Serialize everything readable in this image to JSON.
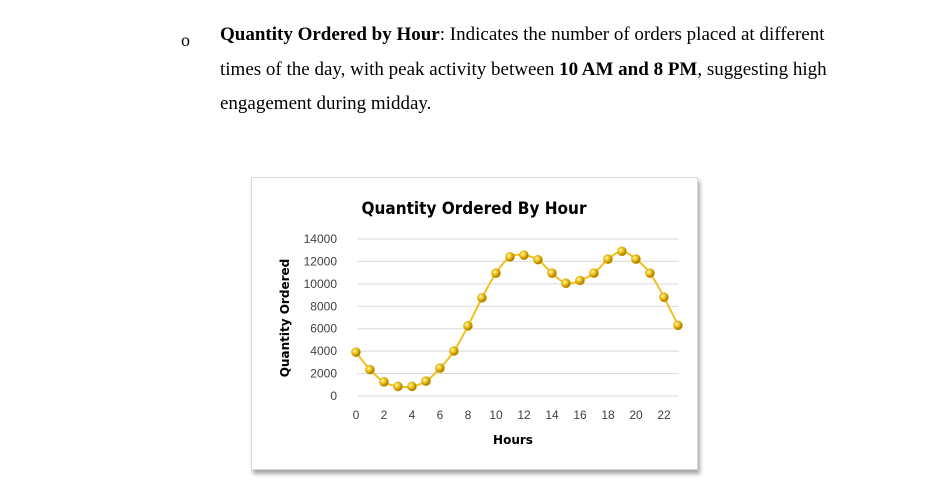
{
  "bullet": {
    "marker": "o",
    "bold_title": "Quantity Ordered by Hour",
    "text_1": ": Indicates the number of orders placed at different times of the day, with peak activity between ",
    "bold_range": "10 AM and 8 PM",
    "text_2": ", suggesting high engagement during midday."
  },
  "colors": {
    "line": "#f2c01f",
    "marker": "#d6a400",
    "grid": "#d9d9d9"
  },
  "chart_data": {
    "type": "line",
    "title": "Quantity Ordered By Hour",
    "xlabel": "Hours",
    "ylabel": "Quantity Ordered",
    "x_tick_labels": [
      "0",
      "2",
      "4",
      "6",
      "8",
      "10",
      "12",
      "14",
      "16",
      "18",
      "20",
      "22"
    ],
    "y_tick_labels": [
      "0",
      "2000",
      "4000",
      "6000",
      "8000",
      "10000",
      "12000",
      "14000"
    ],
    "ylim": [
      0,
      14000
    ],
    "grid": true,
    "legend": "none",
    "x": [
      0,
      1,
      2,
      3,
      4,
      5,
      6,
      7,
      8,
      9,
      10,
      11,
      12,
      13,
      14,
      15,
      16,
      17,
      18,
      19,
      20,
      21,
      22,
      23
    ],
    "values": [
      3900,
      2350,
      1250,
      850,
      850,
      1320,
      2480,
      4010,
      6250,
      8750,
      10950,
      12400,
      12550,
      12150,
      10950,
      10050,
      10300,
      10950,
      12200,
      12900,
      12200,
      10950,
      8800,
      6300
    ]
  }
}
